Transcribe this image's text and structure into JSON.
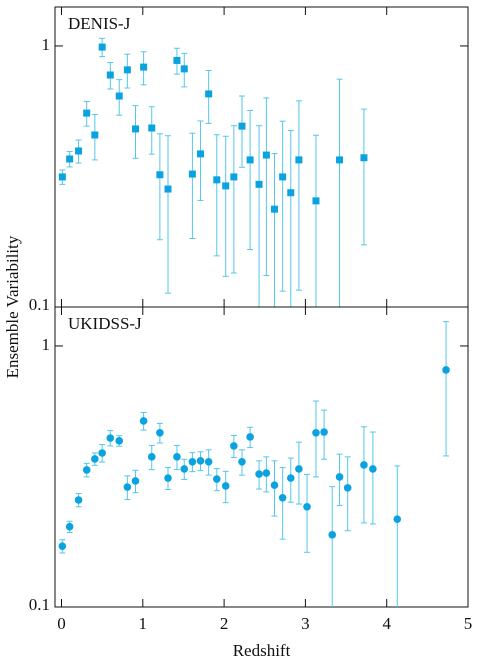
{
  "chart_data": [
    {
      "type": "scatter",
      "title": "DENIS-J",
      "ylabel": "Ensemble Variability",
      "marker": "square",
      "color": "#0aa3df",
      "error_color": "#55c6ea",
      "log_y": true,
      "xlim": [
        -0.08,
        5
      ],
      "xticks": [
        0,
        1,
        2,
        3,
        4,
        5
      ],
      "ylim": [
        0.1,
        1.41
      ],
      "yticks": [
        0.1,
        1
      ],
      "x": [
        0.01,
        0.1,
        0.21,
        0.31,
        0.41,
        0.5,
        0.6,
        0.71,
        0.81,
        0.91,
        1.01,
        1.11,
        1.21,
        1.31,
        1.42,
        1.51,
        1.61,
        1.71,
        1.81,
        1.91,
        2.02,
        2.12,
        2.22,
        2.32,
        2.43,
        2.52,
        2.62,
        2.72,
        2.82,
        2.92,
        3.13,
        3.42,
        3.72
      ],
      "values": [
        0.315,
        0.369,
        0.396,
        0.553,
        0.456,
        0.99,
        0.774,
        0.643,
        0.81,
        0.481,
        0.83,
        0.485,
        0.321,
        0.283,
        0.88,
        0.817,
        0.323,
        0.386,
        0.655,
        0.307,
        0.291,
        0.315,
        0.493,
        0.366,
        0.295,
        0.382,
        0.237,
        0.315,
        0.274,
        0.366,
        0.255,
        0.366,
        0.373
      ],
      "errors": [
        0.02,
        0.025,
        0.04,
        0.06,
        0.09,
        0.08,
        0.09,
        0.1,
        0.12,
        0.11,
        0.12,
        0.1,
        0.14,
        0.17,
        0.1,
        0.12,
        0.14,
        0.13,
        0.15,
        0.15,
        0.16,
        0.18,
        0.15,
        0.2,
        0.2,
        0.25,
        0.15,
        0.2,
        0.2,
        0.25,
        0.2,
        0.38,
        0.2
      ]
    },
    {
      "type": "scatter",
      "title": "UKIDSS-J",
      "xlabel": "Redshift",
      "marker": "circle",
      "color": "#0aa3df",
      "error_color": "#55c6ea",
      "log_y": true,
      "xlim": [
        -0.08,
        5
      ],
      "xticks": [
        0,
        1,
        2,
        3,
        4,
        5
      ],
      "ylim": [
        0.1,
        1.41
      ],
      "yticks": [
        0.1,
        1
      ],
      "x": [
        0.01,
        0.1,
        0.21,
        0.31,
        0.41,
        0.5,
        0.6,
        0.71,
        0.81,
        0.91,
        1.01,
        1.11,
        1.21,
        1.31,
        1.42,
        1.51,
        1.61,
        1.71,
        1.81,
        1.91,
        2.02,
        2.12,
        2.22,
        2.32,
        2.43,
        2.52,
        2.62,
        2.72,
        2.82,
        2.92,
        3.02,
        3.13,
        3.23,
        3.33,
        3.42,
        3.52,
        3.72,
        3.83,
        4.13,
        4.73
      ],
      "values": [
        0.171,
        0.203,
        0.257,
        0.335,
        0.369,
        0.389,
        0.444,
        0.433,
        0.288,
        0.304,
        0.516,
        0.376,
        0.465,
        0.312,
        0.376,
        0.338,
        0.36,
        0.363,
        0.36,
        0.309,
        0.291,
        0.414,
        0.36,
        0.448,
        0.323,
        0.326,
        0.293,
        0.262,
        0.312,
        0.338,
        0.242,
        0.465,
        0.468,
        0.189,
        0.315,
        0.286,
        0.35,
        0.338,
        0.217,
        0.809
      ],
      "errors": [
        0.01,
        0.01,
        0.015,
        0.02,
        0.02,
        0.03,
        0.03,
        0.02,
        0.03,
        0.03,
        0.04,
        0.04,
        0.04,
        0.03,
        0.04,
        0.03,
        0.03,
        0.03,
        0.04,
        0.03,
        0.04,
        0.04,
        0.04,
        0.04,
        0.04,
        0.05,
        0.07,
        0.08,
        0.06,
        0.09,
        0.08,
        0.15,
        0.1,
        0.1,
        0.07,
        0.09,
        0.14,
        0.13,
        0.13,
        0.43
      ]
    }
  ]
}
